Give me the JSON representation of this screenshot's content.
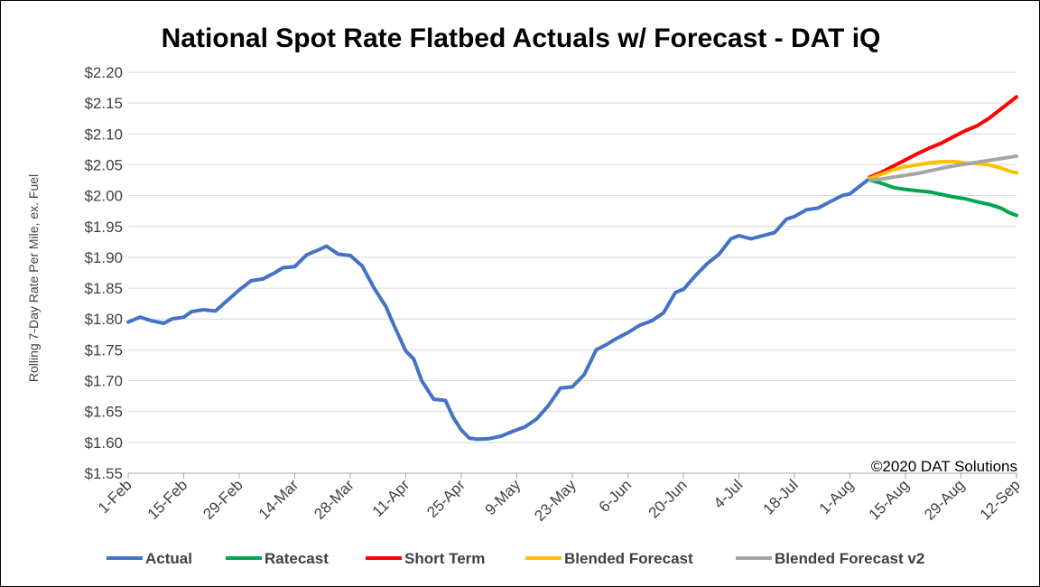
{
  "chart_data": {
    "type": "line",
    "title": "National Spot Rate Flatbed Actuals w/ Forecast - DAT iQ",
    "ylabel": "Rolling 7-Day Rate Per Mile, ex. Fuel",
    "xlabel": "",
    "annotation": "©2020 DAT Solutions",
    "ylim": [
      1.55,
      2.2
    ],
    "y_ticks": [
      "$1.55",
      "$1.60",
      "$1.65",
      "$1.70",
      "$1.75",
      "$1.80",
      "$1.85",
      "$1.90",
      "$1.95",
      "$2.00",
      "$2.05",
      "$2.10",
      "$2.15",
      "$2.20"
    ],
    "y_tick_values": [
      1.55,
      1.6,
      1.65,
      1.7,
      1.75,
      1.8,
      1.85,
      1.9,
      1.95,
      2.0,
      2.05,
      2.1,
      2.15,
      2.2
    ],
    "x_ticks": [
      "1-Feb",
      "15-Feb",
      "29-Feb",
      "14-Mar",
      "28-Mar",
      "11-Apr",
      "25-Apr",
      "9-May",
      "23-May",
      "6-Jun",
      "20-Jun",
      "4-Jul",
      "18-Jul",
      "1-Aug",
      "15-Aug",
      "29-Aug",
      "12-Sep"
    ],
    "grid": "horizontal",
    "legend_position": "bottom",
    "series": [
      {
        "name": "Actual",
        "color": "#4472C4",
        "x": [
          "1-Feb",
          "4-Feb",
          "7-Feb",
          "10-Feb",
          "12-Feb",
          "15-Feb",
          "17-Feb",
          "20-Feb",
          "23-Feb",
          "26-Feb",
          "29-Feb",
          "3-Mar",
          "6-Mar",
          "9-Mar",
          "11-Mar",
          "14-Mar",
          "17-Mar",
          "20-Mar",
          "22-Mar",
          "25-Mar",
          "28-Mar",
          "31-Mar",
          "3-Apr",
          "6-Apr",
          "8-Apr",
          "11-Apr",
          "13-Apr",
          "15-Apr",
          "18-Apr",
          "21-Apr",
          "23-Apr",
          "25-Apr",
          "27-Apr",
          "29-Apr",
          "2-May",
          "5-May",
          "8-May",
          "11-May",
          "14-May",
          "17-May",
          "20-May",
          "23-May",
          "26-May",
          "29-May",
          "1-Jun",
          "3-Jun",
          "6-Jun",
          "9-Jun",
          "12-Jun",
          "15-Jun",
          "18-Jun",
          "20-Jun",
          "23-Jun",
          "26-Jun",
          "29-Jun",
          "2-Jul",
          "4-Jul",
          "7-Jul",
          "10-Jul",
          "13-Jul",
          "16-Jul",
          "18-Jul",
          "21-Jul",
          "24-Jul",
          "27-Jul",
          "30-Jul",
          "1-Aug",
          "4-Aug",
          "6-Aug"
        ],
        "values": [
          1.795,
          1.803,
          1.797,
          1.793,
          1.8,
          1.803,
          1.812,
          1.815,
          1.813,
          1.83,
          1.847,
          1.862,
          1.865,
          1.875,
          1.883,
          1.885,
          1.904,
          1.912,
          1.918,
          1.905,
          1.903,
          1.886,
          1.85,
          1.82,
          1.79,
          1.748,
          1.735,
          1.7,
          1.67,
          1.668,
          1.64,
          1.62,
          1.607,
          1.605,
          1.606,
          1.61,
          1.618,
          1.625,
          1.638,
          1.66,
          1.688,
          1.69,
          1.71,
          1.75,
          1.76,
          1.768,
          1.778,
          1.79,
          1.797,
          1.81,
          1.843,
          1.848,
          1.87,
          1.89,
          1.905,
          1.93,
          1.935,
          1.93,
          1.935,
          1.94,
          1.962,
          1.966,
          1.977,
          1.98,
          1.99,
          2.0,
          2.003,
          2.018,
          2.028
        ]
      },
      {
        "name": "Ratecast",
        "color": "#00A64F",
        "x": [
          "6-Aug",
          "9-Aug",
          "12-Aug",
          "15-Aug",
          "18-Aug",
          "21-Aug",
          "24-Aug",
          "27-Aug",
          "30-Aug",
          "2-Sep",
          "5-Sep",
          "8-Sep",
          "10-Sep",
          "12-Sep"
        ],
        "values": [
          2.025,
          2.02,
          2.013,
          2.01,
          2.008,
          2.006,
          2.002,
          1.998,
          1.995,
          1.99,
          1.986,
          1.98,
          1.973,
          1.968
        ]
      },
      {
        "name": "Short Term",
        "color": "#FF0000",
        "x": [
          "6-Aug",
          "9-Aug",
          "12-Aug",
          "15-Aug",
          "18-Aug",
          "21-Aug",
          "24-Aug",
          "27-Aug",
          "30-Aug",
          "2-Sep",
          "5-Sep",
          "8-Sep",
          "10-Sep",
          "12-Sep"
        ],
        "values": [
          2.03,
          2.038,
          2.048,
          2.058,
          2.068,
          2.077,
          2.085,
          2.095,
          2.105,
          2.113,
          2.125,
          2.14,
          2.15,
          2.16
        ]
      },
      {
        "name": "Blended Forecast",
        "color": "#FFC000",
        "x": [
          "6-Aug",
          "9-Aug",
          "12-Aug",
          "15-Aug",
          "18-Aug",
          "21-Aug",
          "24-Aug",
          "27-Aug",
          "30-Aug",
          "2-Sep",
          "5-Sep",
          "8-Sep",
          "10-Sep",
          "12-Sep"
        ],
        "values": [
          2.028,
          2.035,
          2.042,
          2.047,
          2.05,
          2.053,
          2.055,
          2.055,
          2.053,
          2.052,
          2.05,
          2.045,
          2.04,
          2.037
        ]
      },
      {
        "name": "Blended Forecast v2",
        "color": "#A5A5A5",
        "x": [
          "6-Aug",
          "9-Aug",
          "12-Aug",
          "15-Aug",
          "18-Aug",
          "21-Aug",
          "24-Aug",
          "27-Aug",
          "30-Aug",
          "2-Sep",
          "5-Sep",
          "8-Sep",
          "10-Sep",
          "12-Sep"
        ],
        "values": [
          2.025,
          2.027,
          2.03,
          2.033,
          2.036,
          2.04,
          2.044,
          2.048,
          2.051,
          2.054,
          2.057,
          2.06,
          2.062,
          2.064
        ]
      }
    ]
  }
}
